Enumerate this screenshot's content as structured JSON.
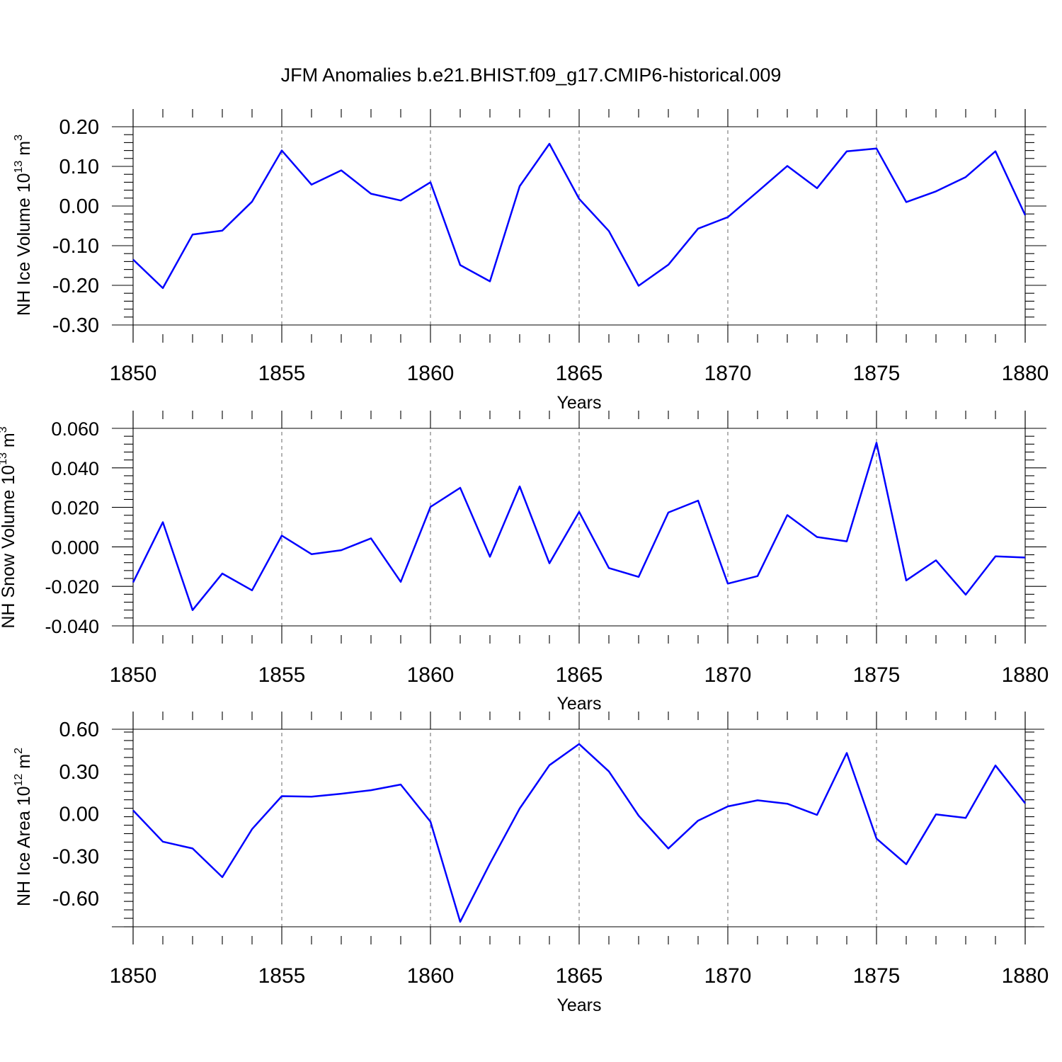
{
  "title": "JFM Anomalies b.e21.BHIST.f09_g17.CMIP6-historical.009",
  "chart_data": [
    {
      "type": "line",
      "ylabel_main": "NH Ice Volume 10",
      "ylabel_exp": "13",
      "ylabel_unit": " m",
      "ylabel_unit_exp": "3",
      "xlabel": "Years",
      "xlim": [
        1850,
        1880
      ],
      "ylim": [
        -0.3,
        0.2
      ],
      "xticks": [
        1850,
        1855,
        1860,
        1865,
        1870,
        1875,
        1880
      ],
      "yticks": [
        -0.3,
        -0.2,
        -0.1,
        0.0,
        0.1,
        0.2
      ],
      "ytick_labels": [
        "-0.30",
        "-0.20",
        "-0.10",
        "0.00",
        "0.10",
        "0.20"
      ],
      "grid": "vertical dashed at major x ticks",
      "series": [
        {
          "x": [
            1850,
            1851,
            1852,
            1853,
            1854,
            1855,
            1856,
            1857,
            1858,
            1859,
            1860,
            1861,
            1862,
            1863,
            1864,
            1865,
            1866,
            1867,
            1868,
            1869,
            1870,
            1871,
            1872,
            1873,
            1874,
            1875,
            1876,
            1877,
            1878,
            1879,
            1880
          ],
          "values": [
            -0.135,
            -0.207,
            -0.072,
            -0.062,
            0.011,
            0.14,
            0.054,
            0.09,
            0.031,
            0.014,
            0.06,
            -0.149,
            -0.19,
            0.05,
            0.157,
            0.018,
            -0.063,
            -0.201,
            -0.148,
            -0.057,
            -0.028,
            0.036,
            0.101,
            0.045,
            0.138,
            0.145,
            0.01,
            0.037,
            0.073,
            0.138,
            -0.023
          ]
        }
      ]
    },
    {
      "type": "line",
      "ylabel_main": "NH Snow Volume 10",
      "ylabel_exp": "13",
      "ylabel_unit": " m",
      "ylabel_unit_exp": "3",
      "xlabel": "Years",
      "xlim": [
        1850,
        1880
      ],
      "ylim": [
        -0.04,
        0.06
      ],
      "xticks": [
        1850,
        1855,
        1860,
        1865,
        1870,
        1875,
        1880
      ],
      "yticks": [
        -0.04,
        -0.02,
        0.0,
        0.02,
        0.04,
        0.06
      ],
      "ytick_labels": [
        "-0.040",
        "-0.020",
        "0.000",
        "0.020",
        "0.040",
        "0.060"
      ],
      "grid": "vertical dashed at major x ticks",
      "series": [
        {
          "x": [
            1850,
            1851,
            1852,
            1853,
            1854,
            1855,
            1856,
            1857,
            1858,
            1859,
            1860,
            1861,
            1862,
            1863,
            1864,
            1865,
            1866,
            1867,
            1868,
            1869,
            1870,
            1871,
            1872,
            1873,
            1874,
            1875,
            1876,
            1877,
            1878,
            1879,
            1880
          ],
          "values": [
            -0.018,
            0.0125,
            -0.032,
            -0.0135,
            -0.022,
            0.0057,
            -0.0037,
            -0.0017,
            0.0043,
            -0.0177,
            0.0202,
            0.0299,
            -0.005,
            0.0306,
            -0.0083,
            0.0177,
            -0.0107,
            -0.0152,
            0.0174,
            0.0234,
            -0.0186,
            -0.0148,
            0.0161,
            0.005,
            0.0028,
            0.0527,
            -0.017,
            -0.0068,
            -0.0242,
            -0.0048,
            -0.0054
          ]
        }
      ]
    },
    {
      "type": "line",
      "ylabel_main": "NH Ice Area 10",
      "ylabel_exp": "12",
      "ylabel_unit": " m",
      "ylabel_unit_exp": "2",
      "xlabel": "Years",
      "xlim": [
        1850,
        1880
      ],
      "ylim": [
        -0.8,
        0.6
      ],
      "xticks": [
        1850,
        1855,
        1860,
        1865,
        1870,
        1875,
        1880
      ],
      "yticks": [
        -0.6,
        -0.3,
        0.0,
        0.3,
        0.6
      ],
      "ytick_labels": [
        "-0.60",
        "-0.30",
        "0.00",
        "0.30",
        "0.60"
      ],
      "grid": "vertical dashed at major x ticks",
      "series": [
        {
          "x": [
            1850,
            1851,
            1852,
            1853,
            1854,
            1855,
            1856,
            1857,
            1858,
            1859,
            1860,
            1861,
            1862,
            1863,
            1864,
            1865,
            1866,
            1867,
            1868,
            1869,
            1870,
            1871,
            1872,
            1873,
            1874,
            1875,
            1876,
            1877,
            1878,
            1879,
            1880
          ],
          "values": [
            0.025,
            -0.197,
            -0.245,
            -0.448,
            -0.108,
            0.126,
            0.122,
            0.143,
            0.168,
            0.208,
            -0.055,
            -0.765,
            -0.352,
            0.038,
            0.345,
            0.495,
            0.301,
            -0.012,
            -0.245,
            -0.048,
            0.053,
            0.096,
            0.072,
            -0.007,
            0.432,
            -0.175,
            -0.357,
            -0.003,
            -0.028,
            0.343,
            0.075
          ]
        }
      ]
    }
  ]
}
